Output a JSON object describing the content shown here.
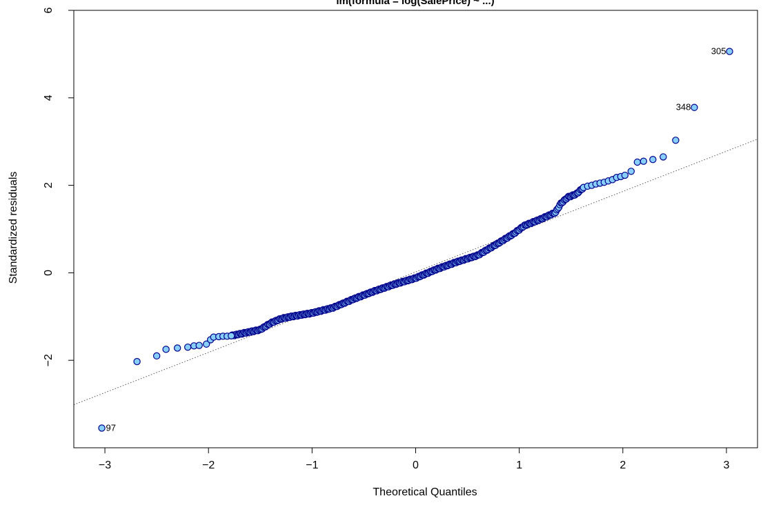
{
  "chart_data": {
    "type": "scatter",
    "title": "lm(formula = log(SalePrice) ~ ...)",
    "xlabel": "Theoretical Quantiles",
    "ylabel": "Standardized residuals",
    "xlim": [
      -3.3,
      3.3
    ],
    "ylim": [
      -4.0,
      6.0
    ],
    "x_ticks": [
      -3,
      -2,
      -1,
      0,
      1,
      2,
      3
    ],
    "x_tick_labels": [
      "−3",
      "−2",
      "−1",
      "0",
      "1",
      "2",
      "3"
    ],
    "y_ticks": [
      -2,
      0,
      2,
      4,
      6
    ],
    "y_tick_labels": [
      "−2",
      "0",
      "2",
      "4",
      "6"
    ],
    "grid": false,
    "reference_line": {
      "intercept": 0.02,
      "slope": 0.92,
      "style": "dotted"
    },
    "point_fill": "#87CEFA",
    "point_stroke": "#00008B",
    "labeled_points": [
      {
        "label": "97",
        "x": -3.03,
        "y": -3.55,
        "side": "right"
      },
      {
        "label": "348",
        "x": 2.69,
        "y": 3.78,
        "side": "left"
      },
      {
        "label": "305",
        "x": 3.03,
        "y": 5.06,
        "side": "left"
      }
    ],
    "tail_points": [
      {
        "x": -2.69,
        "y": -2.03
      },
      {
        "x": -2.5,
        "y": -1.9
      },
      {
        "x": -2.41,
        "y": -1.75
      },
      {
        "x": -2.3,
        "y": -1.72
      },
      {
        "x": -2.2,
        "y": -1.7
      },
      {
        "x": -2.14,
        "y": -1.67
      },
      {
        "x": -2.09,
        "y": -1.66
      },
      {
        "x": -2.02,
        "y": -1.63
      },
      {
        "x": -1.98,
        "y": -1.53
      },
      {
        "x": -1.95,
        "y": -1.47
      },
      {
        "x": -1.9,
        "y": -1.46
      },
      {
        "x": -1.86,
        "y": -1.45
      },
      {
        "x": -1.82,
        "y": -1.45
      },
      {
        "x": -1.78,
        "y": -1.44
      },
      {
        "x": 1.62,
        "y": 1.95
      },
      {
        "x": 1.66,
        "y": 1.98
      },
      {
        "x": 1.7,
        "y": 2.0
      },
      {
        "x": 1.74,
        "y": 2.03
      },
      {
        "x": 1.78,
        "y": 2.05
      },
      {
        "x": 1.82,
        "y": 2.07
      },
      {
        "x": 1.86,
        "y": 2.1
      },
      {
        "x": 1.9,
        "y": 2.13
      },
      {
        "x": 1.94,
        "y": 2.18
      },
      {
        "x": 1.98,
        "y": 2.2
      },
      {
        "x": 2.02,
        "y": 2.23
      },
      {
        "x": 2.08,
        "y": 2.32
      },
      {
        "x": 2.14,
        "y": 2.53
      },
      {
        "x": 2.2,
        "y": 2.55
      },
      {
        "x": 2.29,
        "y": 2.59
      },
      {
        "x": 2.39,
        "y": 2.65
      },
      {
        "x": 2.51,
        "y": 3.03
      }
    ],
    "body_curve": [
      {
        "x": -1.78,
        "y": -1.44
      },
      {
        "x": -1.5,
        "y": -1.3
      },
      {
        "x": -1.4,
        "y": -1.15
      },
      {
        "x": -1.3,
        "y": -1.05
      },
      {
        "x": -1.2,
        "y": -1.0
      },
      {
        "x": -1.0,
        "y": -0.92
      },
      {
        "x": -0.8,
        "y": -0.8
      },
      {
        "x": -0.6,
        "y": -0.6
      },
      {
        "x": -0.4,
        "y": -0.42
      },
      {
        "x": -0.2,
        "y": -0.26
      },
      {
        "x": 0.0,
        "y": -0.12
      },
      {
        "x": 0.2,
        "y": 0.08
      },
      {
        "x": 0.4,
        "y": 0.25
      },
      {
        "x": 0.6,
        "y": 0.4
      },
      {
        "x": 0.8,
        "y": 0.68
      },
      {
        "x": 0.95,
        "y": 0.9
      },
      {
        "x": 1.05,
        "y": 1.08
      },
      {
        "x": 1.2,
        "y": 1.22
      },
      {
        "x": 1.35,
        "y": 1.38
      },
      {
        "x": 1.4,
        "y": 1.58
      },
      {
        "x": 1.47,
        "y": 1.73
      },
      {
        "x": 1.55,
        "y": 1.8
      },
      {
        "x": 1.62,
        "y": 1.95
      }
    ],
    "body_n": 330
  }
}
